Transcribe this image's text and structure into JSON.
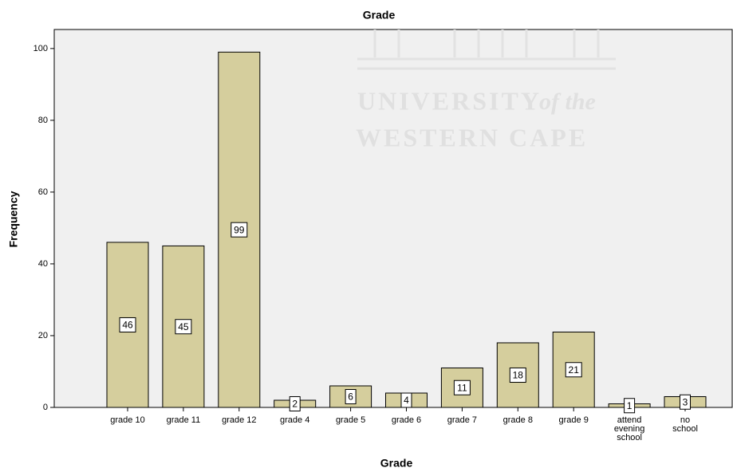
{
  "chart_data": {
    "type": "bar",
    "title": "Grade",
    "x_label": "Grade",
    "y_label": "Frequency",
    "categories": [
      "grade 10",
      "grade 11",
      "grade 12",
      "grade 4",
      "grade 5",
      "grade 6",
      "grade 7",
      "grade 8",
      "grade 9",
      "attend evening school",
      "no school"
    ],
    "values": [
      46,
      45,
      99,
      2,
      6,
      4,
      11,
      18,
      21,
      1,
      3
    ],
    "color": "#d5ce9d",
    "ylim": [
      0,
      105.3
    ],
    "yticks": [
      0,
      20,
      40,
      60,
      80,
      100
    ],
    "grid": false,
    "data_labels": true,
    "watermark": [
      "UNIVERSITY",
      "of the",
      "WESTERN CAPE"
    ]
  }
}
